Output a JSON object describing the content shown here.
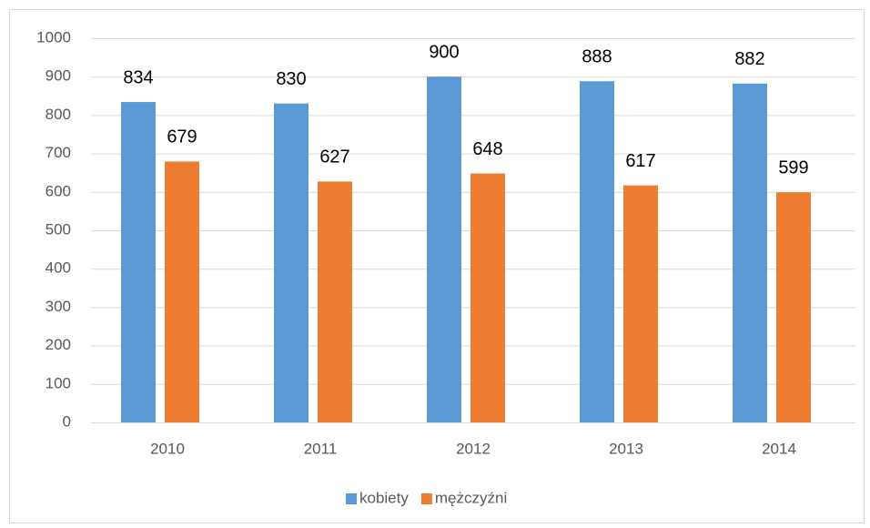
{
  "chart_data": {
    "type": "bar",
    "categories": [
      "2010",
      "2011",
      "2012",
      "2013",
      "2014"
    ],
    "series": [
      {
        "name": "kobiety",
        "color": "#5b9bd5",
        "values": [
          834,
          830,
          900,
          888,
          882
        ]
      },
      {
        "name": "mężczyźni",
        "color": "#ed7d31",
        "values": [
          679,
          627,
          648,
          617,
          599
        ]
      }
    ],
    "ylim": [
      0,
      1000
    ],
    "yticks": [
      0,
      100,
      200,
      300,
      400,
      500,
      600,
      700,
      800,
      900,
      1000
    ],
    "grid": true,
    "legend": "bottom"
  }
}
